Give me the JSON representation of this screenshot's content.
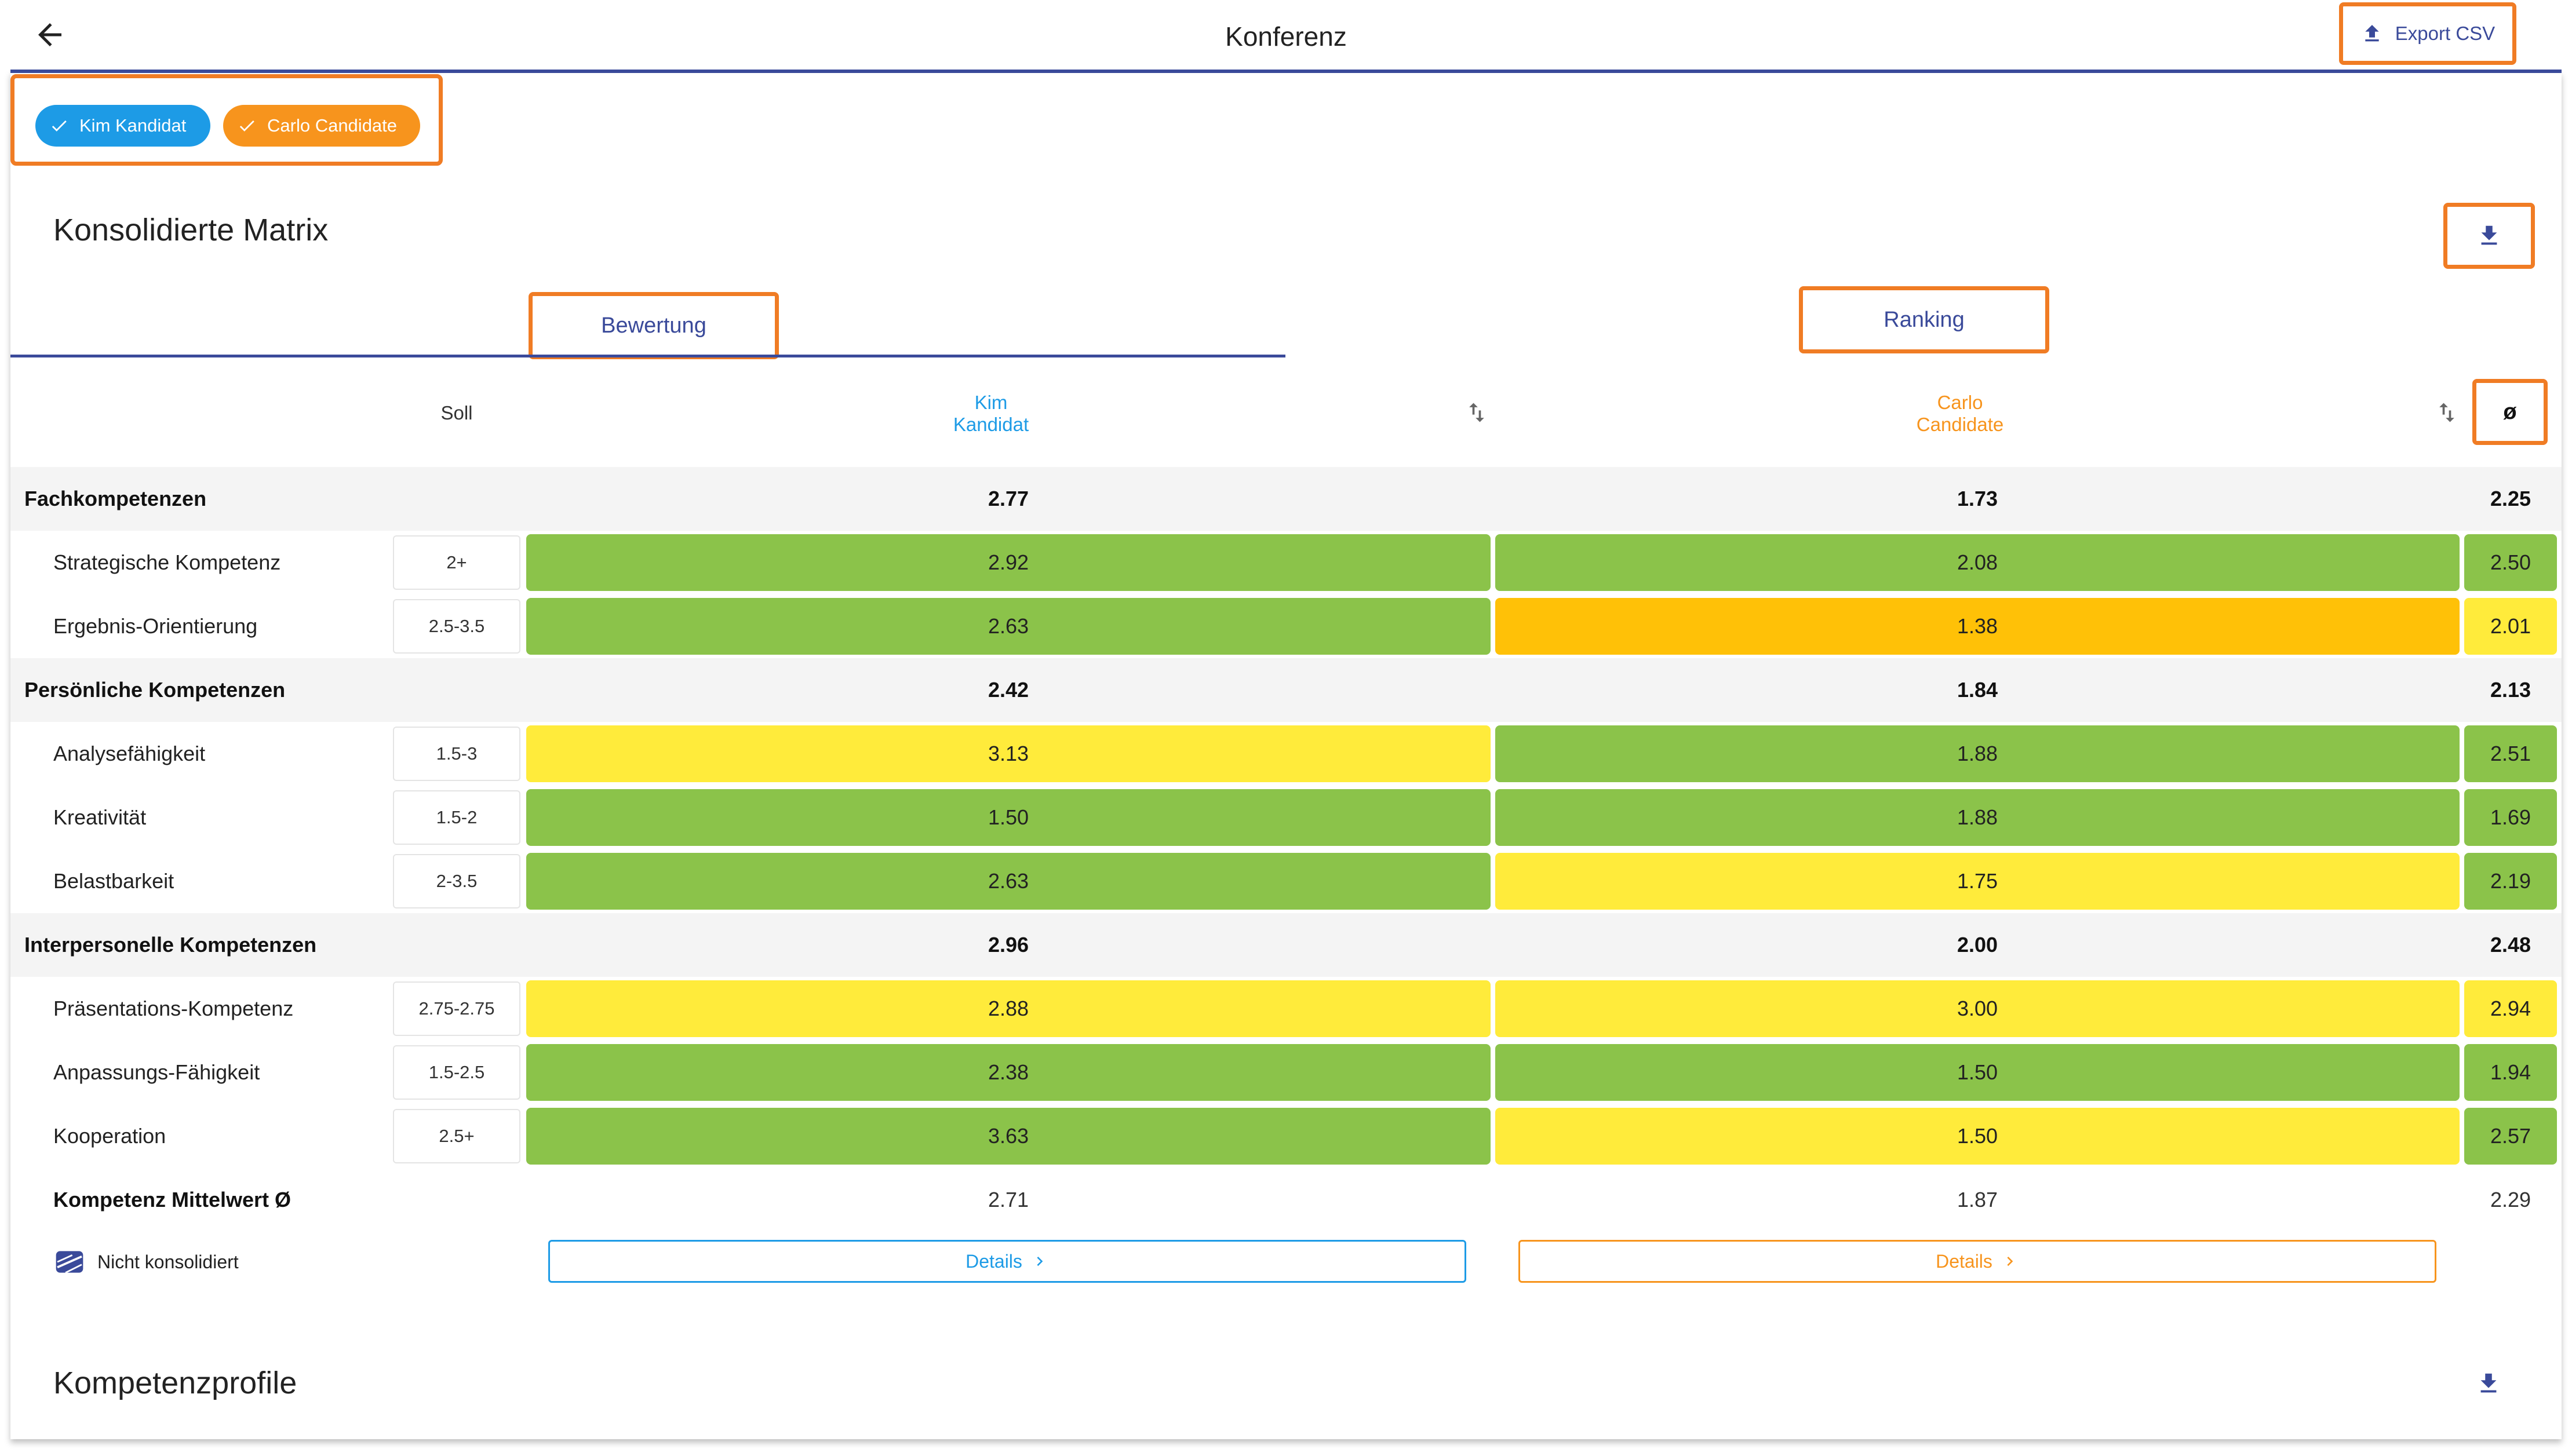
{
  "header": {
    "title": "Konferenz",
    "export_label": "Export CSV",
    "back_icon": "arrow-left-icon",
    "export_icon": "upload-icon"
  },
  "chips": [
    {
      "label": "Kim Kandidat",
      "color": "#1d9be6",
      "icon": "check-icon"
    },
    {
      "label": "Carlo Candidate",
      "color": "#f7941d",
      "icon": "check-icon"
    }
  ],
  "matrix": {
    "title": "Konsolidierte Matrix",
    "tabs": [
      "Bewertung",
      "Ranking"
    ],
    "active_tab": "Bewertung",
    "columns": {
      "soll": "Soll",
      "kim_line1": "Kim",
      "kim_line2": "Kandidat",
      "carlo_line1": "Carlo",
      "carlo_line2": "Candidate",
      "avg": "ø"
    },
    "groups": [
      {
        "label": "Fachkompetenzen",
        "kim": "2.77",
        "carlo": "1.73",
        "avg": "2.25",
        "items": [
          {
            "label": "Strategische Kompetenz",
            "soll": "2+",
            "kim": "2.92",
            "kim_color": "green",
            "carlo": "2.08",
            "carlo_color": "green",
            "avg": "2.50",
            "avg_color": "green"
          },
          {
            "label": "Ergebnis-Orientierung",
            "soll": "2.5-3.5",
            "kim": "2.63",
            "kim_color": "green",
            "carlo": "1.38",
            "carlo_color": "amber",
            "avg": "2.01",
            "avg_color": "yellow"
          }
        ]
      },
      {
        "label": "Persönliche Kompetenzen",
        "kim": "2.42",
        "carlo": "1.84",
        "avg": "2.13",
        "items": [
          {
            "label": "Analysefähigkeit",
            "soll": "1.5-3",
            "kim": "3.13",
            "kim_color": "yellow",
            "carlo": "1.88",
            "carlo_color": "green",
            "avg": "2.51",
            "avg_color": "green"
          },
          {
            "label": "Kreativität",
            "soll": "1.5-2",
            "kim": "1.50",
            "kim_color": "green",
            "carlo": "1.88",
            "carlo_color": "green",
            "avg": "1.69",
            "avg_color": "green"
          },
          {
            "label": "Belastbarkeit",
            "soll": "2-3.5",
            "kim": "2.63",
            "kim_color": "green",
            "carlo": "1.75",
            "carlo_color": "yellow",
            "avg": "2.19",
            "avg_color": "green"
          }
        ]
      },
      {
        "label": "Interpersonelle Kompetenzen",
        "kim": "2.96",
        "carlo": "2.00",
        "avg": "2.48",
        "items": [
          {
            "label": "Präsentations-Kompetenz",
            "soll": "2.75-2.75",
            "kim": "2.88",
            "kim_color": "yellow",
            "carlo": "3.00",
            "carlo_color": "yellow",
            "avg": "2.94",
            "avg_color": "yellow"
          },
          {
            "label": "Anpassungs-Fähigkeit",
            "soll": "1.5-2.5",
            "kim": "2.38",
            "kim_color": "green",
            "carlo": "1.50",
            "carlo_color": "green",
            "avg": "1.94",
            "avg_color": "green"
          },
          {
            "label": "Kooperation",
            "soll": "2.5+",
            "kim": "3.63",
            "kim_color": "green",
            "carlo": "1.50",
            "carlo_color": "yellow",
            "avg": "2.57",
            "avg_color": "green"
          }
        ]
      }
    ],
    "mean": {
      "label": "Kompetenz Mittelwert Ø",
      "kim": "2.71",
      "carlo": "1.87",
      "avg": "2.29"
    },
    "not_consolidated_label": "Nicht konsolidiert",
    "details_label": "Details"
  },
  "profiles": {
    "title": "Kompetenzprofile"
  },
  "colors": {
    "accent": "#3a4a9a",
    "highlight": "#f07c24",
    "green": "#8bc34a",
    "yellow": "#ffeb3b",
    "amber": "#ffc107"
  }
}
